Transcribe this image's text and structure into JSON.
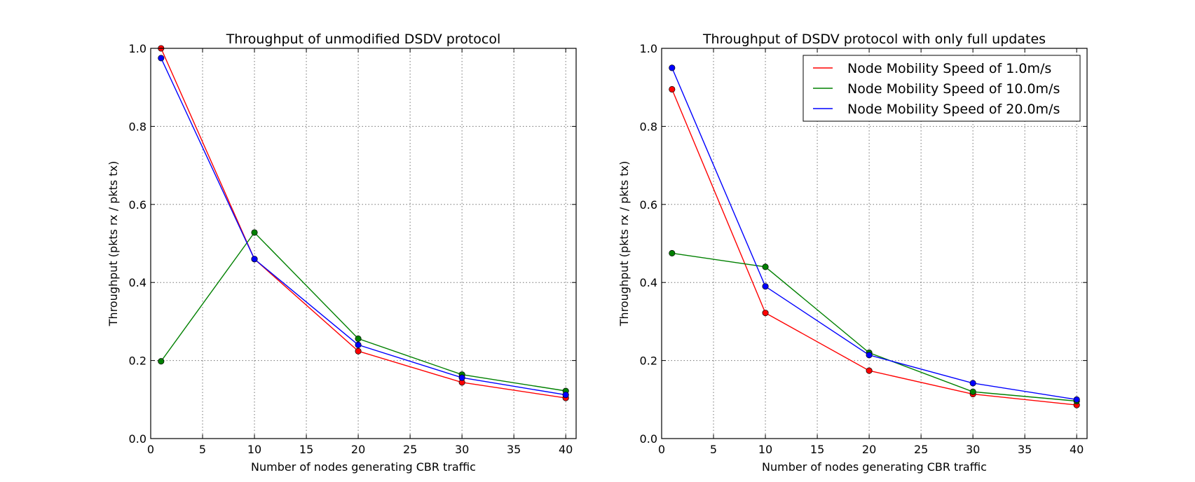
{
  "chart_data": [
    {
      "type": "line",
      "title": "Throughput of unmodified DSDV protocol",
      "xlabel": "Number of nodes generating CBR traffic",
      "ylabel": "Throughput (pkts rx / pkts tx)",
      "xlim": [
        0,
        41
      ],
      "ylim": [
        0.0,
        1.0
      ],
      "xticks": [
        "0",
        "5",
        "10",
        "15",
        "20",
        "25",
        "30",
        "35",
        "40"
      ],
      "yticks": [
        "0.0",
        "0.2",
        "0.4",
        "0.6",
        "0.8",
        "1.0"
      ],
      "grid": true,
      "legend": null,
      "x": [
        1,
        10,
        20,
        30,
        40
      ],
      "series": [
        {
          "name": "Node Mobility Speed of 1.0m/s",
          "color": "#ff0000",
          "values": [
            1.0,
            0.46,
            0.224,
            0.144,
            0.104
          ]
        },
        {
          "name": "Node Mobility Speed of 10.0m/s",
          "color": "#008000",
          "values": [
            0.198,
            0.528,
            0.256,
            0.164,
            0.122
          ]
        },
        {
          "name": "Node Mobility Speed of 20.0m/s",
          "color": "#0000ff",
          "values": [
            0.975,
            0.46,
            0.24,
            0.156,
            0.112
          ]
        }
      ]
    },
    {
      "type": "line",
      "title": "Throughput of DSDV protocol with only full updates",
      "xlabel": "Number of nodes generating CBR traffic",
      "ylabel": "Throughput (pkts rx / pkts tx)",
      "xlim": [
        0,
        41
      ],
      "ylim": [
        0.0,
        1.0
      ],
      "xticks": [
        "0",
        "5",
        "10",
        "15",
        "20",
        "25",
        "30",
        "35",
        "40"
      ],
      "yticks": [
        "0.0",
        "0.2",
        "0.4",
        "0.6",
        "0.8",
        "1.0"
      ],
      "grid": true,
      "legend": "top-right",
      "x": [
        1,
        10,
        20,
        30,
        40
      ],
      "series": [
        {
          "name": "Node Mobility Speed of 1.0m/s",
          "color": "#ff0000",
          "values": [
            0.895,
            0.322,
            0.174,
            0.114,
            0.086
          ]
        },
        {
          "name": "Node Mobility Speed of 10.0m/s",
          "color": "#008000",
          "values": [
            0.475,
            0.44,
            0.22,
            0.12,
            0.096
          ]
        },
        {
          "name": "Node Mobility Speed of 20.0m/s",
          "color": "#0000ff",
          "values": [
            0.95,
            0.39,
            0.214,
            0.142,
            0.1
          ]
        }
      ]
    }
  ]
}
